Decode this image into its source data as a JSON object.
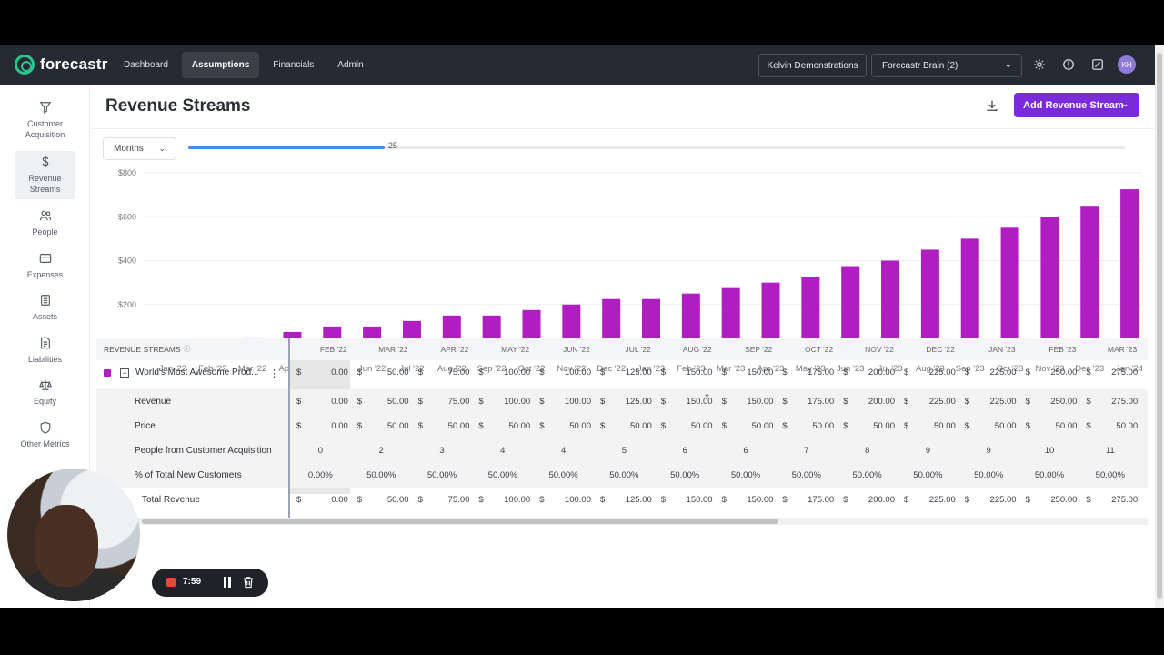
{
  "nav": {
    "logo_text": "forecastr",
    "links": [
      "Dashboard",
      "Assumptions",
      "Financials",
      "Admin"
    ],
    "active_link": "Assumptions",
    "org_name": "Kelvin Demonstrations",
    "brain_select": "Forecastr Brain (2)",
    "avatar_initials": "KH"
  },
  "sidebar": {
    "items": [
      {
        "label": "Customer Acquisition",
        "icon": "filter-icon"
      },
      {
        "label": "Revenue Streams",
        "icon": "dollar-icon"
      },
      {
        "label": "People",
        "icon": "people-icon"
      },
      {
        "label": "Expenses",
        "icon": "credit-card-icon"
      },
      {
        "label": "Assets",
        "icon": "clipboard-icon"
      },
      {
        "label": "Liabilities",
        "icon": "document-icon"
      },
      {
        "label": "Equity",
        "icon": "scale-icon"
      },
      {
        "label": "Other Metrics",
        "icon": "shield-icon"
      }
    ],
    "active_item": "Revenue Streams"
  },
  "page": {
    "title": "Revenue Streams",
    "add_button": "Add Revenue Stream",
    "period_select": "Months",
    "slider_value": "25",
    "slider_fraction": 0.21
  },
  "chart_data": {
    "type": "bar",
    "categories": [
      "Jan '22",
      "Feb '22",
      "Mar '22",
      "Apr '22",
      "May '22",
      "Jun '22",
      "Jul '22",
      "Aug '22",
      "Sep '22",
      "Oct '22",
      "Nov '22",
      "Dec '22",
      "Jan '23",
      "Feb '23",
      "Mar '23",
      "Apr '23",
      "May '23",
      "Jun '23",
      "Jul '23",
      "Aug '23",
      "Sep '23",
      "Oct '23",
      "Nov '23",
      "Dec '23",
      "Jan '24"
    ],
    "values": [
      0,
      0,
      50,
      75,
      100,
      100,
      125,
      150,
      150,
      175,
      200,
      225,
      225,
      250,
      275,
      300,
      325,
      375,
      400,
      450,
      500,
      550,
      600,
      650,
      725
    ],
    "yticks": [
      "$0",
      "$200",
      "$400",
      "$600",
      "$800"
    ],
    "ylim": [
      0,
      800
    ],
    "color": "#b01ec2",
    "grid": true
  },
  "table": {
    "header_label": "REVENUE STREAMS",
    "columns": [
      "FEB '22",
      "MAR '22",
      "APR '22",
      "MAY '22",
      "JUN '22",
      "JUL '22",
      "AUG '22",
      "SEP '22",
      "OCT '22",
      "NOV '22",
      "DEC '22",
      "JAN '23",
      "FEB '23",
      "MAR '23"
    ],
    "rows": [
      {
        "label": "World's Most Awesome Prod...",
        "type": "currency",
        "values": [
          "0.00",
          "50.00",
          "75.00",
          "100.00",
          "100.00",
          "125.00",
          "150.00",
          "150.00",
          "175.00",
          "200.00",
          "225.00",
          "225.00",
          "250.00",
          "275.00"
        ]
      },
      {
        "label": "Revenue",
        "type": "currency",
        "values": [
          "0.00",
          "50.00",
          "75.00",
          "100.00",
          "100.00",
          "125.00",
          "150.00",
          "150.00",
          "175.00",
          "200.00",
          "225.00",
          "225.00",
          "250.00",
          "275.00"
        ]
      },
      {
        "label": "Price",
        "type": "currency",
        "values": [
          "0.00",
          "50.00",
          "50.00",
          "50.00",
          "50.00",
          "50.00",
          "50.00",
          "50.00",
          "50.00",
          "50.00",
          "50.00",
          "50.00",
          "50.00",
          "50.00"
        ]
      },
      {
        "label": "People from Customer Acquisition",
        "type": "count",
        "values": [
          "0",
          "2",
          "3",
          "4",
          "4",
          "5",
          "6",
          "6",
          "7",
          "8",
          "9",
          "9",
          "10",
          "11"
        ]
      },
      {
        "label": "% of Total New Customers",
        "type": "percent",
        "values": [
          "0.00%",
          "50.00%",
          "50.00%",
          "50.00%",
          "50.00%",
          "50.00%",
          "50.00%",
          "50.00%",
          "50.00%",
          "50.00%",
          "50.00%",
          "50.00%",
          "50.00%",
          "50.00%"
        ]
      },
      {
        "label": "Total Revenue",
        "type": "currency",
        "values": [
          "0.00",
          "50.00",
          "75.00",
          "100.00",
          "100.00",
          "125.00",
          "150.00",
          "150.00",
          "175.00",
          "200.00",
          "225.00",
          "225.00",
          "250.00",
          "275.00"
        ]
      }
    ],
    "currency_symbol": "$"
  },
  "recorder": {
    "time": "7:59"
  }
}
